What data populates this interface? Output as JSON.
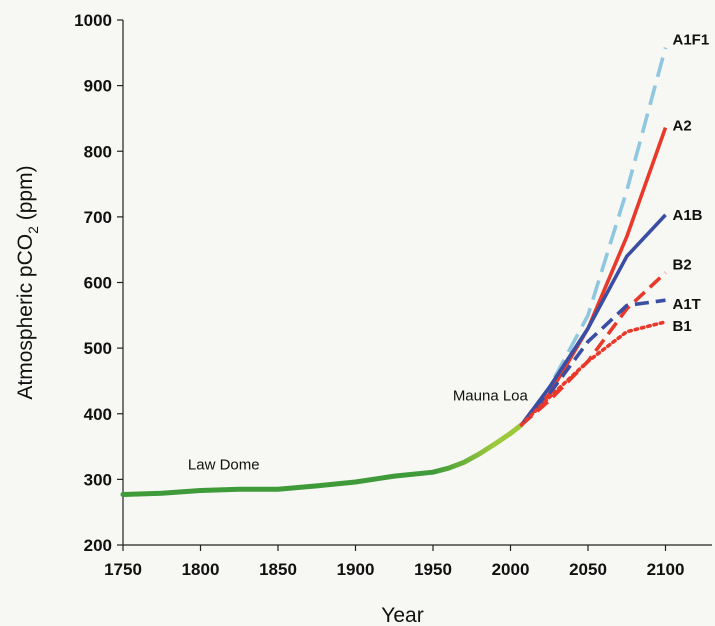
{
  "chart_data": {
    "type": "line",
    "xlabel": "Year",
    "ylabel_main": "Atmospheric pCO",
    "ylabel_sub": "2",
    "ylabel_tail": " (ppm)",
    "xlim": [
      1750,
      2130
    ],
    "ylim": [
      200,
      1000
    ],
    "x_ticks": [
      1750,
      1800,
      1850,
      1900,
      1950,
      2000,
      2050,
      2100
    ],
    "y_ticks": [
      200,
      300,
      400,
      500,
      600,
      700,
      800,
      900,
      1000
    ],
    "grid": false,
    "annotations": [
      {
        "text": "Law Dome",
        "x": 1815,
        "y": 315
      },
      {
        "text": "Mauna Loa",
        "x": 1987,
        "y": 420
      }
    ],
    "historical": {
      "color": "#3f9a3a",
      "color_recent": "#9cc83c",
      "x": [
        1750,
        1775,
        1800,
        1825,
        1850,
        1875,
        1900,
        1925,
        1950,
        1960,
        1970,
        1980,
        1990,
        2000,
        2007
      ],
      "y": [
        277,
        279,
        283,
        285,
        285,
        290,
        296,
        305,
        311,
        317,
        326,
        339,
        354,
        370,
        383
      ]
    },
    "series": [
      {
        "name": "A1F1",
        "color": "#8fc6e0",
        "dash": "long-dash",
        "x": [
          2007,
          2025,
          2050,
          2075,
          2100
        ],
        "y": [
          383,
          440,
          550,
          740,
          958
        ]
      },
      {
        "name": "A2",
        "color": "#e8392b",
        "dash": "solid",
        "x": [
          2007,
          2025,
          2050,
          2075,
          2100
        ],
        "y": [
          383,
          430,
          530,
          670,
          836
        ]
      },
      {
        "name": "A1B",
        "color": "#3a4fa3",
        "dash": "solid",
        "x": [
          2007,
          2025,
          2050,
          2075,
          2100
        ],
        "y": [
          383,
          440,
          530,
          640,
          703
        ]
      },
      {
        "name": "B2",
        "color": "#e8392b",
        "dash": "dash",
        "x": [
          2007,
          2025,
          2050,
          2075,
          2100
        ],
        "y": [
          383,
          420,
          480,
          560,
          615
        ]
      },
      {
        "name": "A1T",
        "color": "#3a4fa3",
        "dash": "dash",
        "x": [
          2007,
          2025,
          2050,
          2075,
          2100
        ],
        "y": [
          383,
          430,
          510,
          565,
          573
        ]
      },
      {
        "name": "B1",
        "color": "#e8392b",
        "dash": "dot",
        "x": [
          2007,
          2025,
          2050,
          2075,
          2100
        ],
        "y": [
          383,
          425,
          480,
          525,
          540
        ]
      }
    ]
  }
}
